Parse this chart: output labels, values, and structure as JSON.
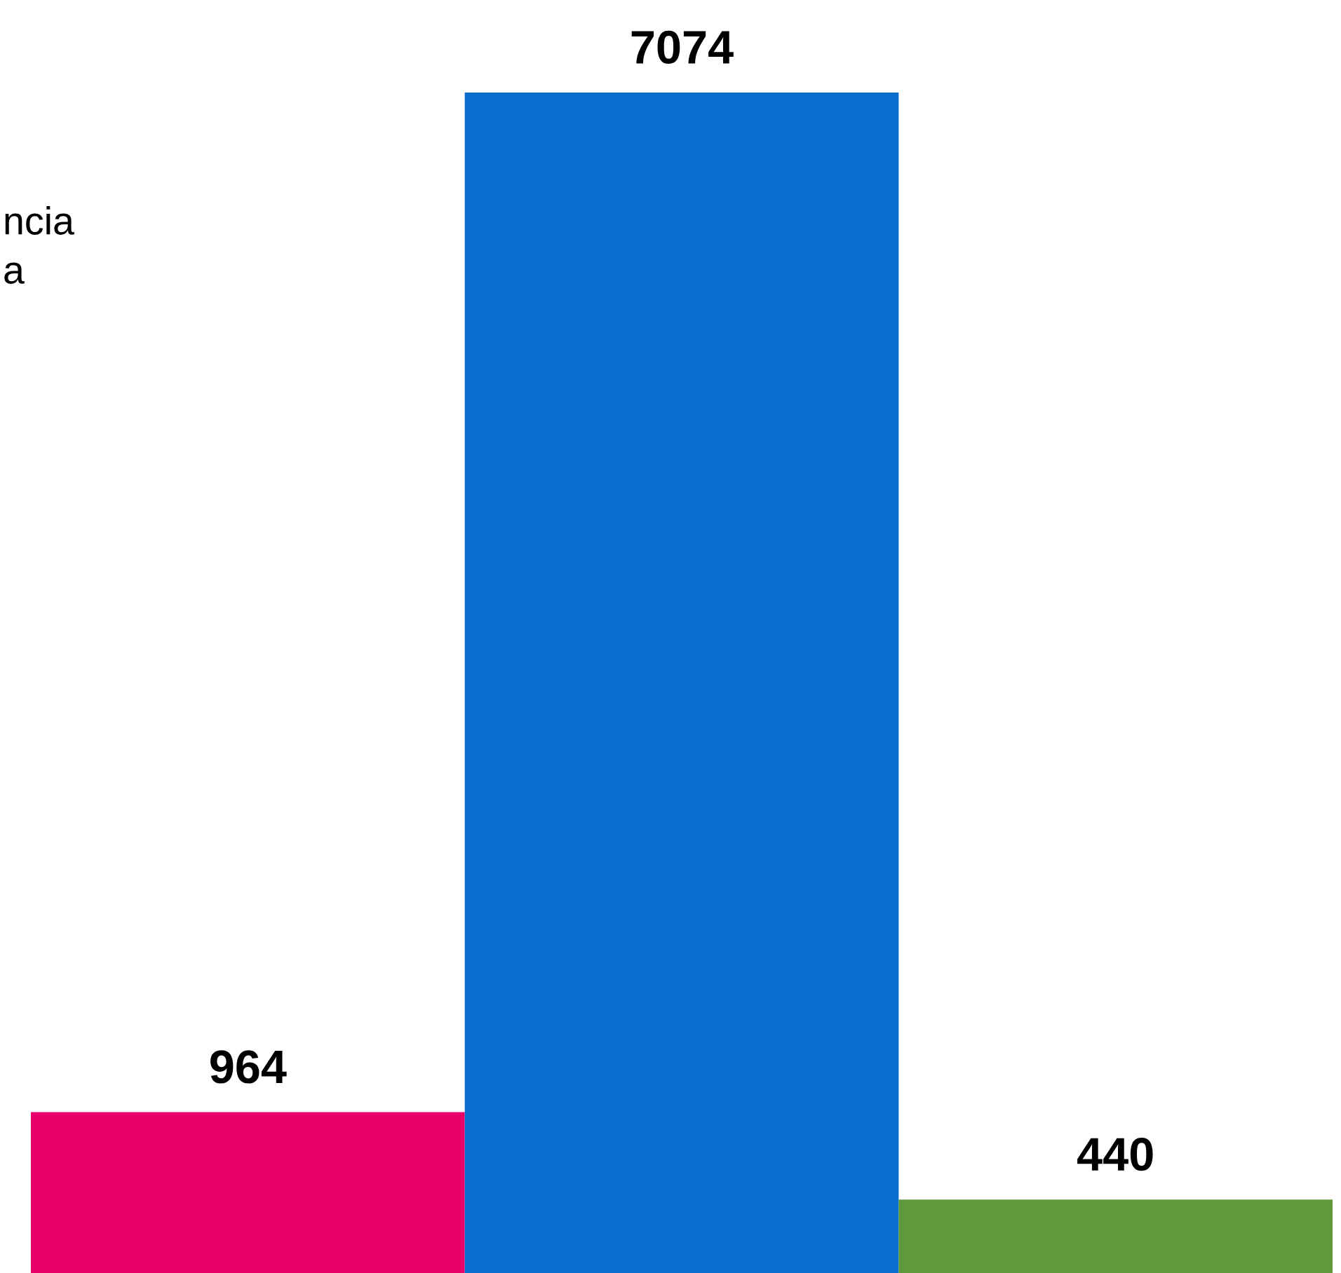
{
  "chart_data": {
    "type": "bar",
    "categories": [
      null,
      null,
      null
    ],
    "values": [
      964,
      7074,
      440
    ],
    "colors": [
      "#e8006a",
      "#0a6ccc",
      "#5e9a3c"
    ],
    "data_labels": true,
    "annotations": [
      "ncia",
      "a"
    ],
    "grid": false
  }
}
